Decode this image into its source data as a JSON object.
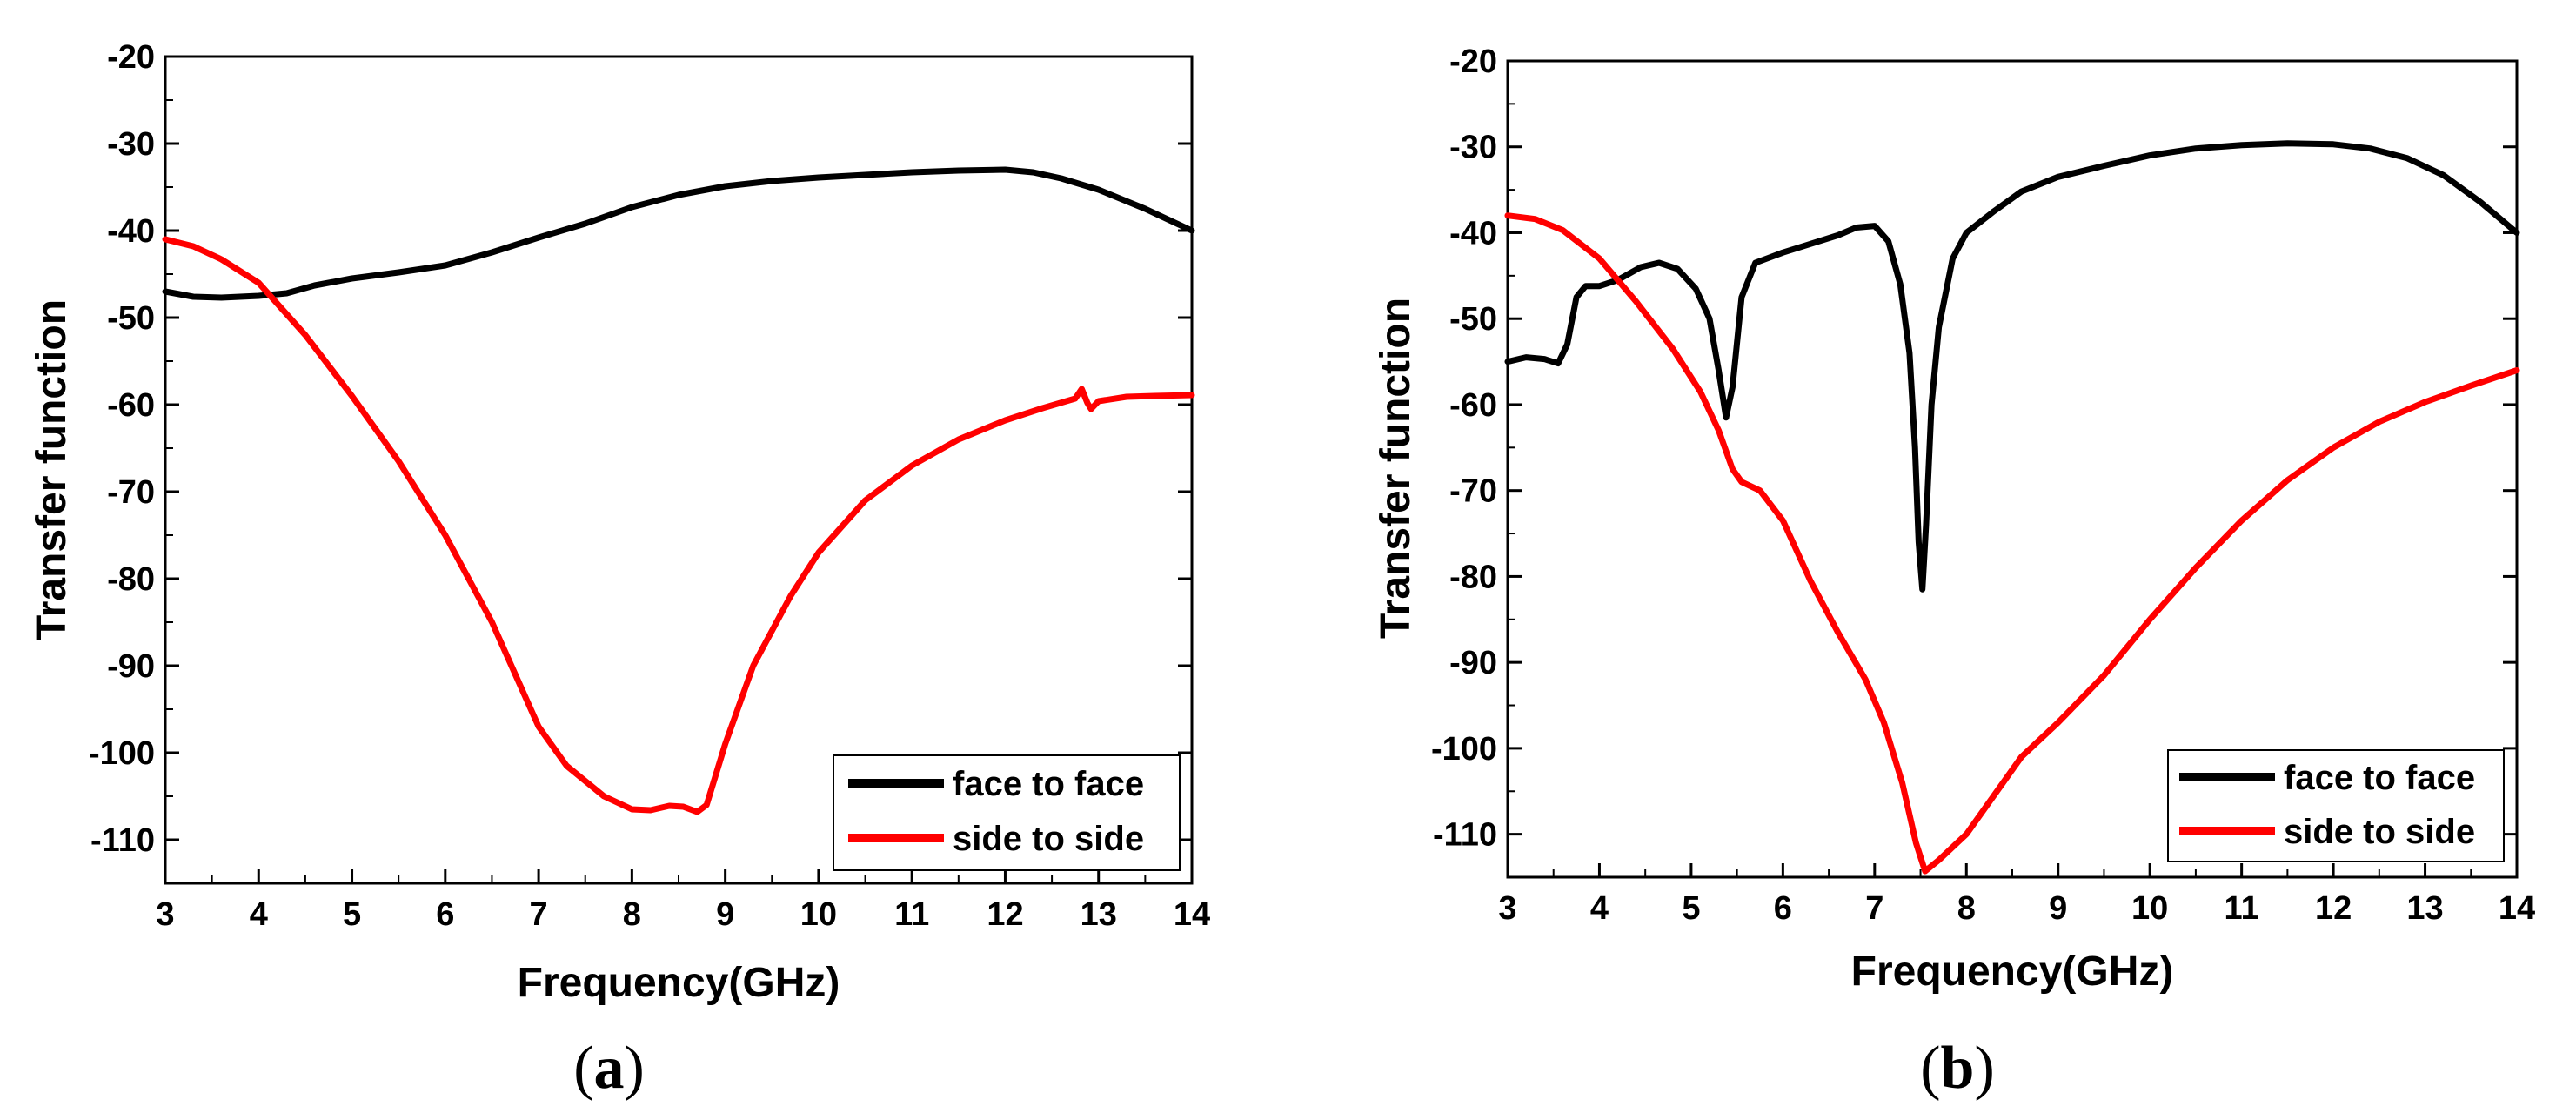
{
  "chart_data": [
    {
      "id": "a",
      "type": "line",
      "panel_label_open": "(",
      "panel_label_letter": "a",
      "panel_label_close": ")",
      "xlabel": "Frequency(GHz)",
      "ylabel": "Transfer function",
      "xlim": [
        3,
        14
      ],
      "ylim": [
        -115,
        -20
      ],
      "xticks": [
        3,
        4,
        5,
        6,
        7,
        8,
        9,
        10,
        11,
        12,
        13,
        14
      ],
      "yticks": [
        -110,
        -100,
        -90,
        -80,
        -70,
        -60,
        -50,
        -40,
        -30,
        -20
      ],
      "legend_position": "bottom-right",
      "series": [
        {
          "name": "face to face",
          "color": "#000000",
          "points": [
            [
              3,
              -47
            ],
            [
              3.3,
              -47.6
            ],
            [
              3.6,
              -47.7
            ],
            [
              4,
              -47.5
            ],
            [
              4.3,
              -47.2
            ],
            [
              4.6,
              -46.3
            ],
            [
              5,
              -45.5
            ],
            [
              5.5,
              -44.8
            ],
            [
              6,
              -44
            ],
            [
              6.5,
              -42.5
            ],
            [
              7,
              -40.8
            ],
            [
              7.5,
              -39.2
            ],
            [
              8,
              -37.3
            ],
            [
              8.5,
              -35.9
            ],
            [
              9,
              -34.9
            ],
            [
              9.5,
              -34.3
            ],
            [
              10,
              -33.9
            ],
            [
              10.5,
              -33.6
            ],
            [
              11,
              -33.3
            ],
            [
              11.5,
              -33.1
            ],
            [
              12,
              -33
            ],
            [
              12.3,
              -33.3
            ],
            [
              12.6,
              -34
            ],
            [
              13,
              -35.3
            ],
            [
              13.5,
              -37.5
            ],
            [
              14,
              -40
            ]
          ]
        },
        {
          "name": "side to side",
          "color": "#ff0000",
          "points": [
            [
              3,
              -41
            ],
            [
              3.3,
              -41.8
            ],
            [
              3.6,
              -43.3
            ],
            [
              4,
              -46
            ],
            [
              4.5,
              -52
            ],
            [
              5,
              -59
            ],
            [
              5.5,
              -66.5
            ],
            [
              6,
              -75
            ],
            [
              6.5,
              -85
            ],
            [
              7,
              -97
            ],
            [
              7.3,
              -101.5
            ],
            [
              7.7,
              -105
            ],
            [
              8,
              -106.5
            ],
            [
              8.2,
              -106.6
            ],
            [
              8.4,
              -106.1
            ],
            [
              8.55,
              -106.2
            ],
            [
              8.7,
              -106.8
            ],
            [
              8.8,
              -106
            ],
            [
              9,
              -99
            ],
            [
              9.3,
              -90
            ],
            [
              9.7,
              -82
            ],
            [
              10,
              -77
            ],
            [
              10.5,
              -71
            ],
            [
              11,
              -67
            ],
            [
              11.5,
              -64
            ],
            [
              12,
              -61.8
            ],
            [
              12.4,
              -60.4
            ],
            [
              12.75,
              -59.3
            ],
            [
              12.82,
              -58.2
            ],
            [
              12.88,
              -59.8
            ],
            [
              12.92,
              -60.5
            ],
            [
              13,
              -59.6
            ],
            [
              13.3,
              -59.1
            ],
            [
              13.6,
              -59
            ],
            [
              14,
              -58.9
            ]
          ]
        }
      ]
    },
    {
      "id": "b",
      "type": "line",
      "panel_label_open": "(",
      "panel_label_letter": "b",
      "panel_label_close": ")",
      "xlabel": "Frequency(GHz)",
      "ylabel": "Transfer function",
      "xlim": [
        3,
        14
      ],
      "ylim": [
        -115,
        -20
      ],
      "xticks": [
        3,
        4,
        5,
        6,
        7,
        8,
        9,
        10,
        11,
        12,
        13,
        14
      ],
      "yticks": [
        -110,
        -100,
        -90,
        -80,
        -70,
        -60,
        -50,
        -40,
        -30,
        -20
      ],
      "legend_position": "bottom-right",
      "series": [
        {
          "name": "face to face",
          "color": "#000000",
          "points": [
            [
              3,
              -55
            ],
            [
              3.2,
              -54.5
            ],
            [
              3.4,
              -54.7
            ],
            [
              3.55,
              -55.2
            ],
            [
              3.65,
              -53
            ],
            [
              3.75,
              -47.5
            ],
            [
              3.85,
              -46.2
            ],
            [
              4,
              -46.2
            ],
            [
              4.2,
              -45.5
            ],
            [
              4.45,
              -44
            ],
            [
              4.65,
              -43.5
            ],
            [
              4.85,
              -44.2
            ],
            [
              5.05,
              -46.5
            ],
            [
              5.2,
              -50
            ],
            [
              5.3,
              -56
            ],
            [
              5.38,
              -61.5
            ],
            [
              5.45,
              -58
            ],
            [
              5.55,
              -47.5
            ],
            [
              5.7,
              -43.5
            ],
            [
              6,
              -42.3
            ],
            [
              6.3,
              -41.3
            ],
            [
              6.6,
              -40.3
            ],
            [
              6.8,
              -39.4
            ],
            [
              7,
              -39.2
            ],
            [
              7.15,
              -41
            ],
            [
              7.28,
              -46
            ],
            [
              7.38,
              -54
            ],
            [
              7.44,
              -65
            ],
            [
              7.48,
              -76
            ],
            [
              7.52,
              -81.5
            ],
            [
              7.56,
              -74
            ],
            [
              7.62,
              -60
            ],
            [
              7.7,
              -51
            ],
            [
              7.85,
              -43
            ],
            [
              8,
              -40
            ],
            [
              8.3,
              -37.5
            ],
            [
              8.6,
              -35.2
            ],
            [
              9,
              -33.5
            ],
            [
              9.5,
              -32.2
            ],
            [
              10,
              -31
            ],
            [
              10.5,
              -30.2
            ],
            [
              11,
              -29.8
            ],
            [
              11.5,
              -29.6
            ],
            [
              12,
              -29.7
            ],
            [
              12.4,
              -30.2
            ],
            [
              12.8,
              -31.3
            ],
            [
              13.2,
              -33.3
            ],
            [
              13.6,
              -36.4
            ],
            [
              14,
              -40
            ]
          ]
        },
        {
          "name": "side to side",
          "color": "#ff0000",
          "points": [
            [
              3,
              -38
            ],
            [
              3.3,
              -38.4
            ],
            [
              3.6,
              -39.7
            ],
            [
              4,
              -43
            ],
            [
              4.4,
              -48
            ],
            [
              4.8,
              -53.5
            ],
            [
              5.1,
              -58.5
            ],
            [
              5.3,
              -63
            ],
            [
              5.45,
              -67.5
            ],
            [
              5.55,
              -69
            ],
            [
              5.75,
              -70
            ],
            [
              6,
              -73.5
            ],
            [
              6.3,
              -80.5
            ],
            [
              6.6,
              -86.5
            ],
            [
              6.9,
              -92
            ],
            [
              7.1,
              -97
            ],
            [
              7.3,
              -104
            ],
            [
              7.45,
              -111
            ],
            [
              7.55,
              -114.3
            ],
            [
              7.7,
              -113
            ],
            [
              8,
              -110
            ],
            [
              8.3,
              -105.5
            ],
            [
              8.6,
              -101
            ],
            [
              9,
              -97
            ],
            [
              9.5,
              -91.5
            ],
            [
              10,
              -85
            ],
            [
              10.5,
              -79
            ],
            [
              11,
              -73.5
            ],
            [
              11.5,
              -68.8
            ],
            [
              12,
              -65
            ],
            [
              12.5,
              -62
            ],
            [
              13,
              -59.7
            ],
            [
              13.5,
              -57.8
            ],
            [
              14,
              -56
            ]
          ]
        }
      ]
    }
  ]
}
